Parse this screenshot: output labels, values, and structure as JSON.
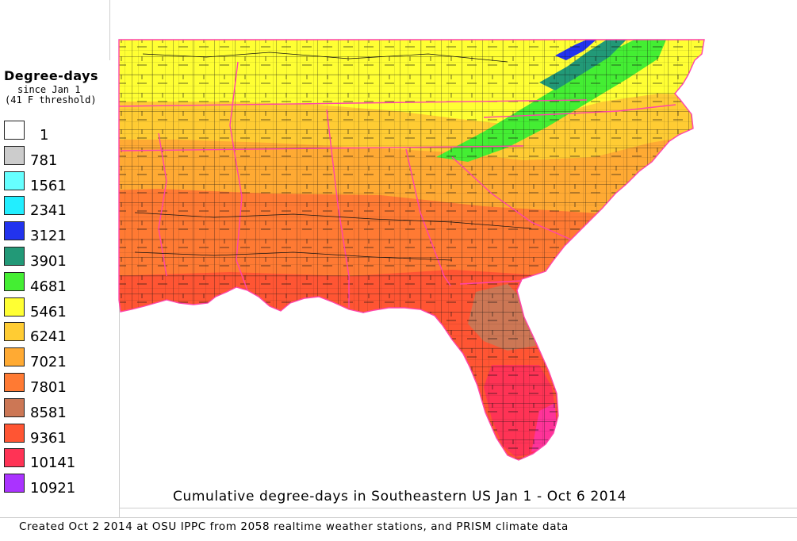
{
  "legend": {
    "title": "Degree-days",
    "subtitle1": "since Jan 1",
    "subtitle2": "(41 F threshold)",
    "items": [
      {
        "label": "1",
        "color": "#ffffff"
      },
      {
        "label": "781",
        "color": "#cccccc"
      },
      {
        "label": "1561",
        "color": "#66ffff"
      },
      {
        "label": "2341",
        "color": "#22eeff"
      },
      {
        "label": "3121",
        "color": "#2233ee"
      },
      {
        "label": "3901",
        "color": "#229977"
      },
      {
        "label": "4681",
        "color": "#44ee33"
      },
      {
        "label": "5461",
        "color": "#ffff33"
      },
      {
        "label": "6241",
        "color": "#ffcc33"
      },
      {
        "label": "7021",
        "color": "#ffaa33"
      },
      {
        "label": "7801",
        "color": "#ff7a33"
      },
      {
        "label": "8581",
        "color": "#cc7755"
      },
      {
        "label": "9361",
        "color": "#ff5533"
      },
      {
        "label": "10141",
        "color": "#ff3355"
      },
      {
        "label": "10921",
        "color": "#aa33ff"
      }
    ]
  },
  "map": {
    "title": "Cumulative degree-days in Southeastern US Jan 1 - Oct 6 2014",
    "border_color": "#ff44aa",
    "county_color": "#111111"
  },
  "credit": "Created Oct 2 2014 at OSU IPPC from 2058 realtime weather stations, and PRISM climate data"
}
